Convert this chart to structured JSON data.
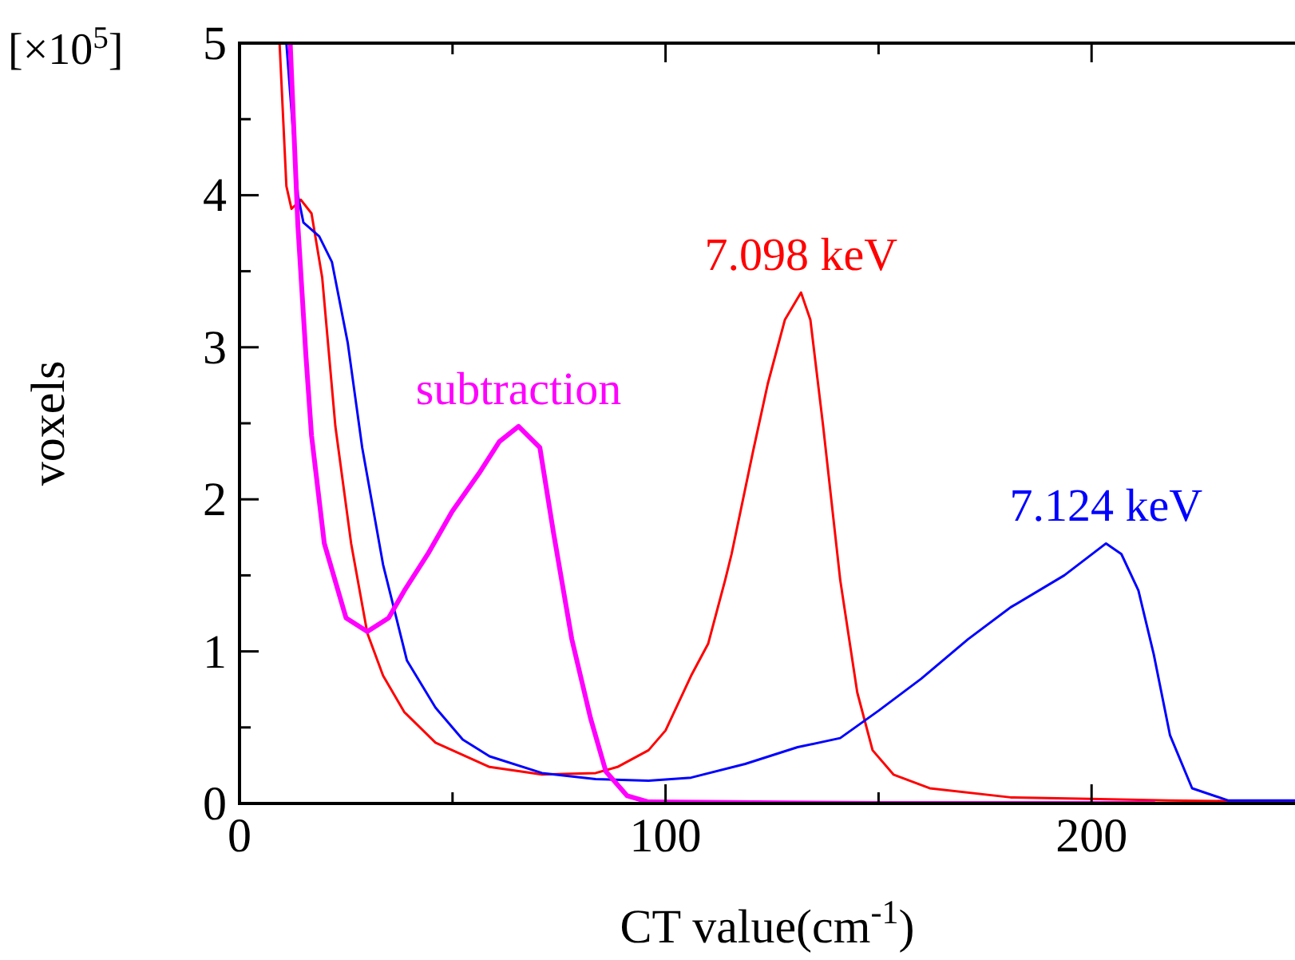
{
  "chart_data": {
    "type": "line",
    "xlabel": "CT value(cm$^{-1}$)",
    "ylabel": "voxels",
    "annotations": [
      "[×10$^{5}$]"
    ],
    "xlim": [
      0,
      250
    ],
    "ylim": [
      0,
      5
    ],
    "xticks": [
      0,
      {
        "value": 50,
        "label": null
      },
      100,
      {
        "value": 150,
        "label": null
      },
      200,
      {
        "value": 250,
        "label": null
      }
    ],
    "yticks": [
      0,
      {
        "value": 0.5,
        "label": null
      },
      1,
      {
        "value": 1.5,
        "label": null
      },
      2,
      {
        "value": 2.5,
        "label": null
      },
      3,
      {
        "value": 3.5,
        "label": null
      },
      4,
      {
        "value": 4.5,
        "label": null
      },
      5
    ],
    "grid": false,
    "marker": "none",
    "series": [
      {
        "name": "7.098 keV",
        "color": "#ff0000",
        "line_style": "solid",
        "x": [
          9.4,
          11,
          12.2,
          14.4,
          16.9,
          19.4,
          22.5,
          26.2,
          30,
          33.7,
          38.7,
          46,
          58.7,
          71,
          83.6,
          88.7,
          96,
          100,
          106,
          110,
          114,
          115.5,
          120.5,
          124,
          128,
          131.8,
          134,
          137,
          141,
          145,
          148.6,
          153.5,
          162,
          181,
          199.6,
          218,
          250
        ],
        "values": [
          5,
          4.06,
          3.91,
          3.97,
          3.88,
          3.46,
          2.48,
          1.71,
          1.12,
          0.84,
          0.6,
          0.4,
          0.24,
          0.19,
          0.2,
          0.24,
          0.35,
          0.48,
          0.84,
          1.05,
          1.47,
          1.64,
          2.31,
          2.76,
          3.18,
          3.36,
          3.18,
          2.48,
          1.47,
          0.73,
          0.35,
          0.19,
          0.1,
          0.04,
          0.03,
          0.02,
          0.01
        ]
      },
      {
        "name": "7.124 keV",
        "color": "#0000ff",
        "line_style": "solid",
        "x": [
          11,
          13.7,
          15,
          18.7,
          21.7,
          25.4,
          28.8,
          33.7,
          39.3,
          46,
          52.4,
          58.7,
          71,
          83.6,
          96,
          106,
          118.7,
          131,
          141,
          150,
          160,
          171,
          181,
          193.6,
          203.4,
          207,
          211,
          214.6,
          218.4,
          223.6,
          232,
          250
        ],
        "values": [
          5,
          4,
          3.82,
          3.73,
          3.56,
          3.03,
          2.34,
          1.57,
          0.94,
          0.63,
          0.42,
          0.31,
          0.2,
          0.16,
          0.15,
          0.17,
          0.26,
          0.37,
          0.43,
          0.61,
          0.82,
          1.08,
          1.29,
          1.5,
          1.71,
          1.64,
          1.4,
          0.98,
          0.45,
          0.1,
          0.02,
          0.02
        ]
      },
      {
        "name": "subtraction",
        "color": "#ff00ff",
        "line_style": "solid",
        "x": [
          11.9,
          13.7,
          15.6,
          16.9,
          19.9,
          25,
          30,
          35,
          38.7,
          44.2,
          49.9,
          56.2,
          61,
          65.5,
          70.5,
          73.7,
          78,
          82.4,
          86,
          91,
          96,
          150,
          214.6
        ],
        "values": [
          5,
          3.8,
          2.94,
          2.42,
          1.71,
          1.22,
          1.13,
          1.22,
          1.4,
          1.64,
          1.92,
          2.17,
          2.38,
          2.48,
          2.34,
          1.78,
          1.08,
          0.56,
          0.21,
          0.05,
          0.01,
          0,
          0
        ]
      }
    ]
  }
}
